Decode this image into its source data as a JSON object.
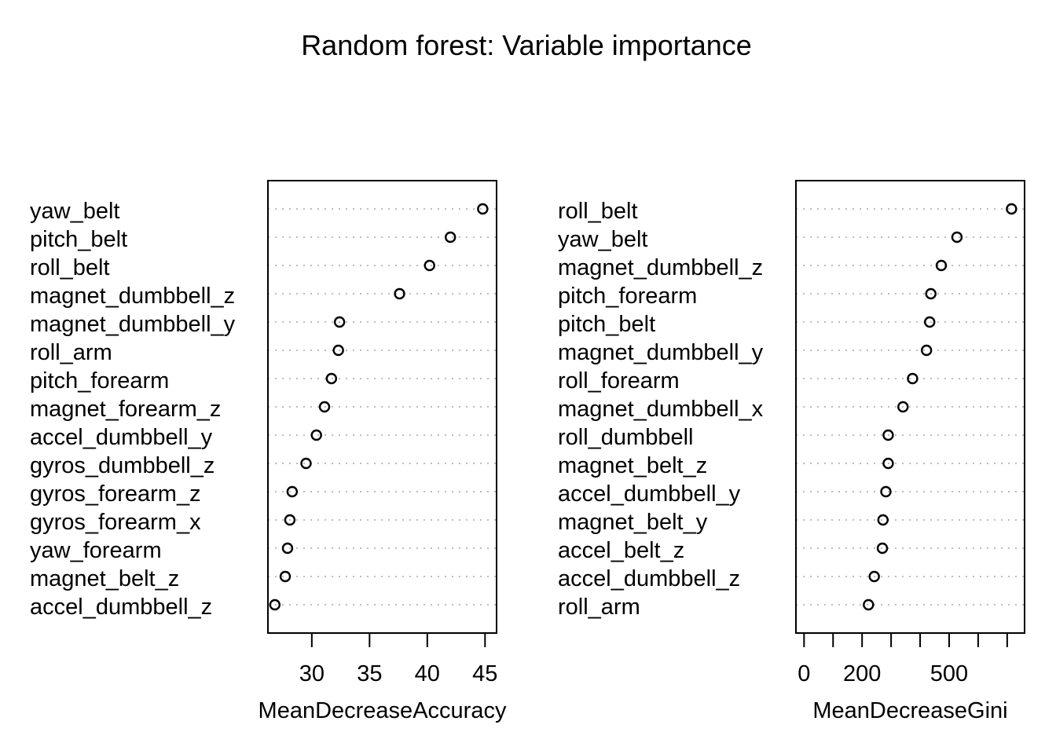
{
  "chart_data": {
    "title": "Random forest: Variable importance",
    "panels": [
      {
        "type": "scatter",
        "style": "dotchart",
        "xlabel": "MeanDecreaseAccuracy",
        "xlim": [
          26.2,
          46.0
        ],
        "xticks": [
          30,
          35,
          40,
          45
        ],
        "xtick_labels": [
          "30",
          "35",
          "40",
          "45"
        ],
        "categories": [
          "yaw_belt",
          "pitch_belt",
          "roll_belt",
          "magnet_dumbbell_z",
          "magnet_dumbbell_y",
          "roll_arm",
          "pitch_forearm",
          "magnet_forearm_z",
          "accel_dumbbell_y",
          "gyros_dumbbell_z",
          "gyros_forearm_z",
          "gyros_forearm_x",
          "yaw_forearm",
          "magnet_belt_z",
          "accel_dumbbell_z"
        ],
        "values": [
          44.8,
          42.0,
          40.2,
          37.6,
          32.4,
          32.3,
          31.7,
          31.1,
          30.4,
          29.5,
          28.3,
          28.1,
          27.9,
          27.7,
          26.8
        ]
      },
      {
        "type": "scatter",
        "style": "dotchart",
        "xlabel": "MeanDecreaseGini",
        "xlim": [
          -28,
          760
        ],
        "xticks": [
          0,
          100,
          200,
          300,
          400,
          500,
          600,
          700
        ],
        "xtick_labels": [
          "0",
          "",
          "200",
          "",
          "",
          "500",
          "",
          ""
        ],
        "categories": [
          "roll_belt",
          "yaw_belt",
          "magnet_dumbbell_z",
          "pitch_forearm",
          "pitch_belt",
          "magnet_dumbbell_y",
          "roll_forearm",
          "magnet_dumbbell_x",
          "roll_dumbbell",
          "magnet_belt_z",
          "accel_dumbbell_y",
          "magnet_belt_y",
          "accel_belt_z",
          "accel_dumbbell_z",
          "roll_arm"
        ],
        "values": [
          715,
          527,
          473,
          437,
          433,
          422,
          374,
          341,
          290,
          290,
          282,
          272,
          270,
          242,
          222
        ]
      }
    ]
  }
}
